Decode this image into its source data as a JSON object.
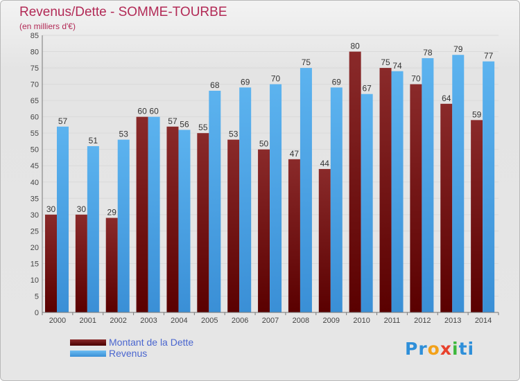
{
  "header": {
    "title": "Revenus/Dette - SOMME-TOURBE",
    "subtitle": "(en milliers d'€)"
  },
  "legend": {
    "items": [
      {
        "label": "Montant de la Dette",
        "color": "#7a1a1a"
      },
      {
        "label": "Revenus",
        "color": "#4da6e8"
      }
    ]
  },
  "logo": {
    "text": "Proxiti",
    "letters": [
      "P",
      "r",
      "o",
      "x",
      "i",
      "t",
      "i"
    ],
    "colors": [
      "#2e8fd9",
      "#2e8fd9",
      "#f2a11a",
      "#e8412c",
      "#3db83d",
      "#2e8fd9",
      "#2e8fd9"
    ]
  },
  "colors": {
    "title": "#b22a56",
    "dette_top": "#8a2a2a",
    "dette_bottom": "#5a0000",
    "revenus_top": "#5cb3ef",
    "revenus_bottom": "#3a8fd6",
    "grid": "#d9d9d9"
  },
  "chart_data": {
    "type": "bar",
    "categories": [
      "2000",
      "2001",
      "2002",
      "2003",
      "2004",
      "2005",
      "2006",
      "2007",
      "2008",
      "2009",
      "2010",
      "2011",
      "2012",
      "2013",
      "2014"
    ],
    "series": [
      {
        "name": "Montant de la Dette",
        "values": [
          30,
          30,
          29,
          60,
          57,
          55,
          53,
          50,
          47,
          44,
          80,
          75,
          70,
          64,
          59
        ]
      },
      {
        "name": "Revenus",
        "values": [
          57,
          51,
          53,
          60,
          56,
          68,
          69,
          70,
          75,
          69,
          67,
          74,
          78,
          79,
          77
        ]
      }
    ],
    "ylim": [
      0,
      85
    ],
    "yticks": [
      0,
      5,
      10,
      15,
      20,
      25,
      30,
      35,
      40,
      45,
      50,
      55,
      60,
      65,
      70,
      75,
      80,
      85
    ],
    "grid": true,
    "legend_position": "bottom-left"
  }
}
